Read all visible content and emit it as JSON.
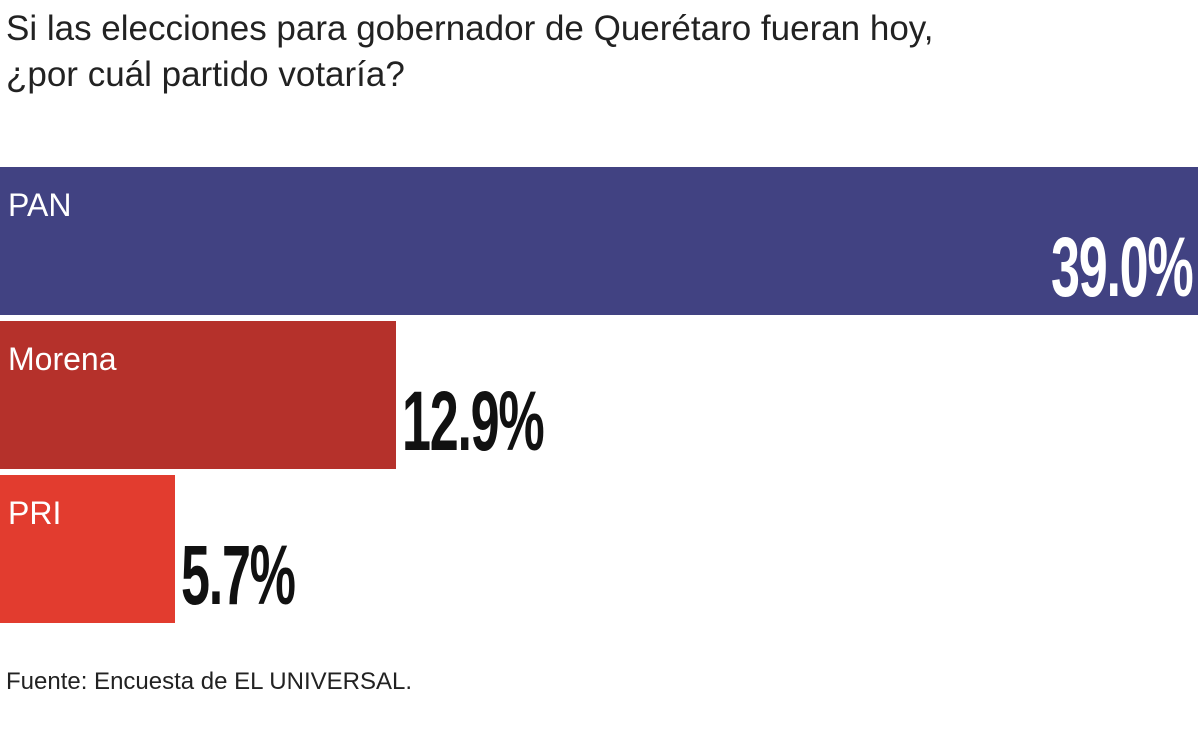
{
  "chart_data": {
    "type": "bar",
    "orientation": "horizontal",
    "title_lines": [
      "Si las elecciones para gobernador de Querétaro fueran hoy,",
      "¿por cuál partido votaría?"
    ],
    "categories": [
      "PAN",
      "Morena",
      "PRI"
    ],
    "values": [
      39.0,
      12.9,
      5.7
    ],
    "value_labels": [
      "39.0%",
      "12.9%",
      "5.7%"
    ],
    "colors": [
      "#414282",
      "#b5312b",
      "#e23c2f"
    ],
    "xlim": [
      0,
      39.0
    ],
    "grid": false,
    "source": "Fuente: Encuesta de EL UNIVERSAL."
  }
}
